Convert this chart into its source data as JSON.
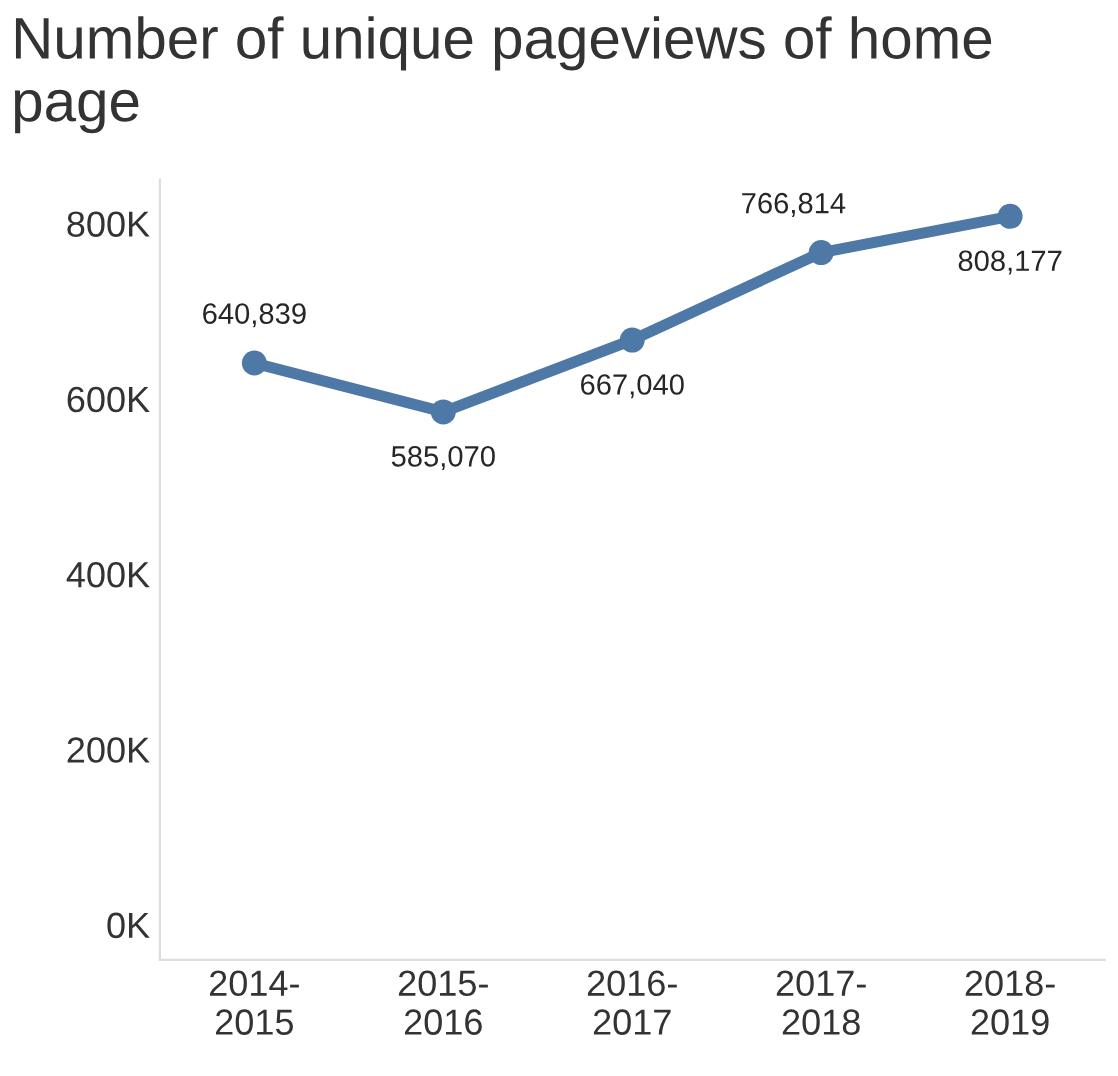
{
  "chart_data": {
    "type": "line",
    "title": "Number of unique pageviews of home page",
    "categories": [
      "2014-\n2015",
      "2015-\n2016",
      "2016-\n2017",
      "2017-\n2018",
      "2018-\n2019"
    ],
    "series": [
      {
        "color": "#4e79a7",
        "values": [
          640839,
          585070,
          667040,
          766814,
          808177
        ],
        "value_labels": [
          "640,839",
          "585,070",
          "667,040",
          "766,814",
          "808,177"
        ]
      }
    ],
    "ylim": [
      -40000,
      850000
    ],
    "yticks": [
      {
        "value": 0,
        "label": "0K"
      },
      {
        "value": 200000,
        "label": "200K"
      },
      {
        "value": 400000,
        "label": "400K"
      },
      {
        "value": 600000,
        "label": "600K"
      },
      {
        "value": 800000,
        "label": "800K"
      }
    ],
    "marker": "circle",
    "line_style": "solid"
  }
}
